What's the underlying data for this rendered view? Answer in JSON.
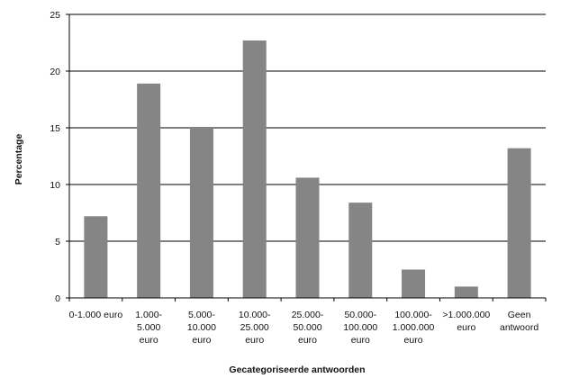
{
  "chart_data": {
    "type": "bar",
    "categories": [
      [
        "0-1.000 euro"
      ],
      [
        "1.000-",
        "5.000",
        "euro"
      ],
      [
        "5.000-",
        "10.000",
        "euro"
      ],
      [
        "10.000-",
        "25.000",
        "euro"
      ],
      [
        "25.000-",
        "50.000",
        "euro"
      ],
      [
        "50.000-",
        "100.000",
        "euro"
      ],
      [
        "100.000-",
        "1.000.000",
        "euro"
      ],
      [
        ">1.000.000",
        "euro"
      ],
      [
        "Geen",
        "antwoord"
      ]
    ],
    "values": [
      7.2,
      18.9,
      15.0,
      22.7,
      10.6,
      8.4,
      2.5,
      1.0,
      13.2
    ],
    "ylim": [
      0,
      25
    ],
    "yticks": [
      0,
      5,
      10,
      15,
      20,
      25
    ],
    "xlabel": "Gecategoriseerde antwoorden",
    "ylabel": "Percentage",
    "grid": true,
    "colors": {
      "bar": "#858585",
      "grid": "#000000",
      "axis": "#000000"
    }
  }
}
